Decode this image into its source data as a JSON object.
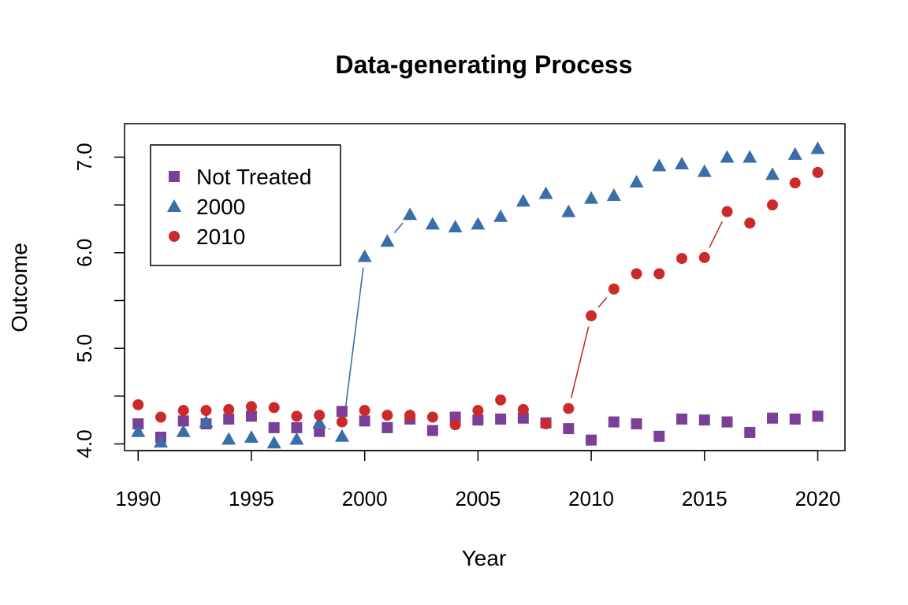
{
  "chart_data": {
    "type": "scatter",
    "title": "Data-generating Process",
    "xlabel": "Year",
    "ylabel": "Outcome",
    "xlim": [
      1989.4,
      2021.2
    ],
    "ylim": [
      3.93,
      7.35
    ],
    "xticks": [
      1990,
      1995,
      2000,
      2005,
      2010,
      2015,
      2020
    ],
    "yticks": [
      4.0,
      4.5,
      5.0,
      5.5,
      6.0,
      6.5,
      7.0
    ],
    "ytick_labels": [
      "4.0",
      "",
      "5.0",
      "",
      "6.0",
      "",
      "7.0"
    ],
    "legend_position": "top-left",
    "x": [
      1990,
      1991,
      1992,
      1993,
      1994,
      1995,
      1996,
      1997,
      1998,
      1999,
      2000,
      2001,
      2002,
      2003,
      2004,
      2005,
      2006,
      2007,
      2008,
      2009,
      2010,
      2011,
      2012,
      2013,
      2014,
      2015,
      2016,
      2017,
      2018,
      2019,
      2020
    ],
    "series": [
      {
        "name": "Not Treated",
        "color": "#7B3F98",
        "marker": "square",
        "values": [
          4.21,
          4.07,
          4.24,
          4.21,
          4.26,
          4.29,
          4.17,
          4.17,
          4.13,
          4.34,
          4.24,
          4.17,
          4.26,
          4.14,
          4.28,
          4.25,
          4.26,
          4.27,
          4.22,
          4.16,
          4.04,
          4.23,
          4.21,
          4.08,
          4.26,
          4.25,
          4.23,
          4.12,
          4.27,
          4.26,
          4.29
        ]
      },
      {
        "name": "2000",
        "color": "#3B6EA8",
        "marker": "triangle",
        "values": [
          4.13,
          4.02,
          4.13,
          4.23,
          4.05,
          4.07,
          4.01,
          4.05,
          4.22,
          4.08,
          5.96,
          6.12,
          6.4,
          6.3,
          6.27,
          6.3,
          6.38,
          6.54,
          6.62,
          6.43,
          6.57,
          6.6,
          6.74,
          6.91,
          6.93,
          6.85,
          7.0,
          7.0,
          6.82,
          7.03,
          7.09
        ]
      },
      {
        "name": "2010",
        "color": "#CC2A2A",
        "marker": "circle",
        "values": [
          4.41,
          4.28,
          4.35,
          4.35,
          4.36,
          4.39,
          4.38,
          4.29,
          4.3,
          4.23,
          4.35,
          4.3,
          4.3,
          4.28,
          4.2,
          4.35,
          4.46,
          4.36,
          4.21,
          4.37,
          5.34,
          5.62,
          5.78,
          5.78,
          5.94,
          5.95,
          6.43,
          6.31,
          6.5,
          6.73,
          6.84
        ]
      }
    ],
    "connectors": [
      {
        "series_index": 1,
        "from_x": 1999,
        "to_x": 2000,
        "style": "solid"
      },
      {
        "series_index": 1,
        "from_x": 2001,
        "to_x": 2002,
        "style": "solid"
      },
      {
        "series_index": 1,
        "from_x": 1998,
        "to_x": 1999,
        "style": "dotted"
      },
      {
        "series_index": 2,
        "from_x": 2009,
        "to_x": 2010,
        "style": "solid"
      },
      {
        "series_index": 2,
        "from_x": 2010,
        "to_x": 2011,
        "style": "solid"
      },
      {
        "series_index": 2,
        "from_x": 2015,
        "to_x": 2016,
        "style": "solid"
      }
    ]
  }
}
